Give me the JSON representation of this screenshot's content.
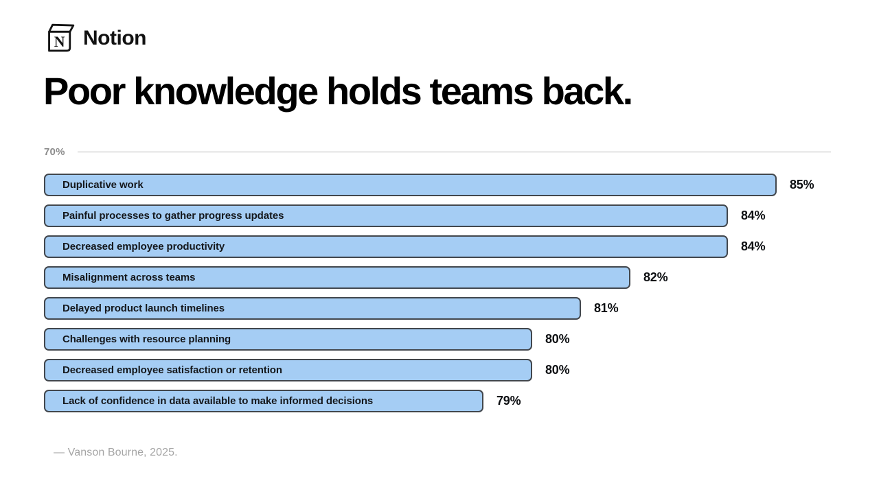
{
  "brand": {
    "name": "Notion"
  },
  "title": "Poor knowledge holds teams back.",
  "colors": {
    "bar_fill": "#a5cdf4",
    "bar_border": "#42474d",
    "axis_line": "#b5b5b5",
    "title_text": "#000000",
    "muted_text": "#8c8c8c"
  },
  "chart_data": {
    "type": "bar",
    "orientation": "horizontal",
    "title": "",
    "xlabel": "",
    "ylabel": "",
    "xlim": [
      70,
      86
    ],
    "grid": false,
    "legend": "none",
    "axis": {
      "min": 70,
      "min_label": "70%"
    },
    "rows": [
      {
        "label": "Duplicative work",
        "value": 85,
        "value_label": "85%"
      },
      {
        "label": "Painful processes to gather progress updates",
        "value": 84,
        "value_label": "84%"
      },
      {
        "label": "Decreased employee productivity",
        "value": 84,
        "value_label": "84%"
      },
      {
        "label": "Misalignment across teams",
        "value": 82,
        "value_label": "82%"
      },
      {
        "label": "Delayed product launch timelines",
        "value": 81,
        "value_label": "81%"
      },
      {
        "label": "Challenges with resource planning",
        "value": 80,
        "value_label": "80%"
      },
      {
        "label": "Decreased employee satisfaction or retention",
        "value": 80,
        "value_label": "80%"
      },
      {
        "label": "Lack of confidence in data available to make informed decisions",
        "value": 79,
        "value_label": "79%"
      }
    ]
  },
  "footer": {
    "source": "— Vanson Bourne, 2025."
  }
}
